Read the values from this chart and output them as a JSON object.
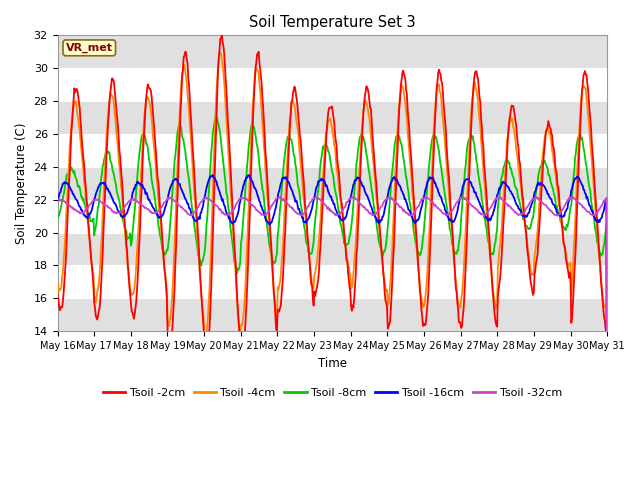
{
  "title": "Soil Temperature Set 3",
  "xlabel": "Time",
  "ylabel": "Soil Temperature (C)",
  "ylim": [
    14,
    32
  ],
  "annotation": "VR_met",
  "fig_facecolor": "#ffffff",
  "plot_facecolor": "#ffffff",
  "series_colors": [
    "#ff0000",
    "#ff8800",
    "#00cc00",
    "#0000ff",
    "#cc44cc"
  ],
  "series_labels": [
    "Tsoil -2cm",
    "Tsoil -4cm",
    "Tsoil -8cm",
    "Tsoil -16cm",
    "Tsoil -32cm"
  ],
  "tick_dates": [
    "May 16",
    "May 17",
    "May 18",
    "May 19",
    "May 20",
    "May 21",
    "May 22",
    "May 23",
    "May 24",
    "May 25",
    "May 26",
    "May 27",
    "May 28",
    "May 29",
    "May 30",
    "May 31"
  ],
  "grid_color": "#d8d8d8",
  "linewidth": 1.3,
  "band_color": "#e0e0e0"
}
